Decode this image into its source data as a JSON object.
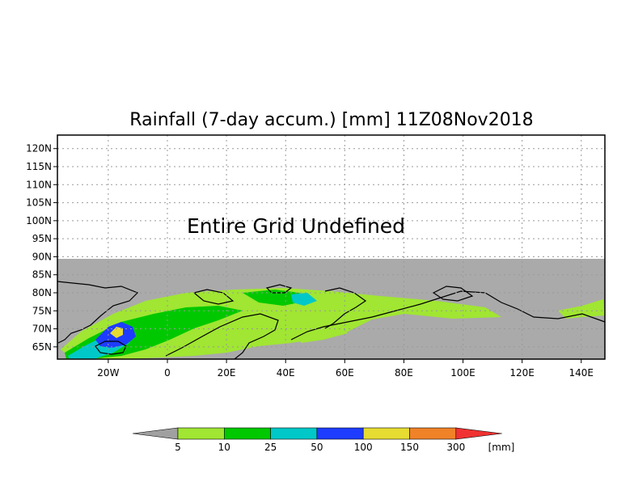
{
  "title": "Rainfall (7-day accum.) [mm] 11Z08Nov2018",
  "message": "Entire Grid Undefined",
  "lat_labels": [
    "120N",
    "115N",
    "110N",
    "105N",
    "100N",
    "95N",
    "90N",
    "85N",
    "80N",
    "75N",
    "70N",
    "65N"
  ],
  "lon_labels": [
    "20W",
    "0",
    "20E",
    "40E",
    "60E",
    "80E",
    "100E",
    "120E",
    "140E"
  ],
  "legend": {
    "unit": "[mm]",
    "thresholds": [
      "5",
      "10",
      "25",
      "50",
      "100",
      "150",
      "300"
    ],
    "colors": [
      "#a0a0a0",
      "#a0e632",
      "#00c800",
      "#00c8c8",
      "#1e3cff",
      "#e6dc32",
      "#f08228",
      "#f03232"
    ]
  },
  "colors": {
    "undefined_background": "#ffffff",
    "land_ocean_no_rain": "#aaaaaa",
    "coastline": "#000000"
  }
}
